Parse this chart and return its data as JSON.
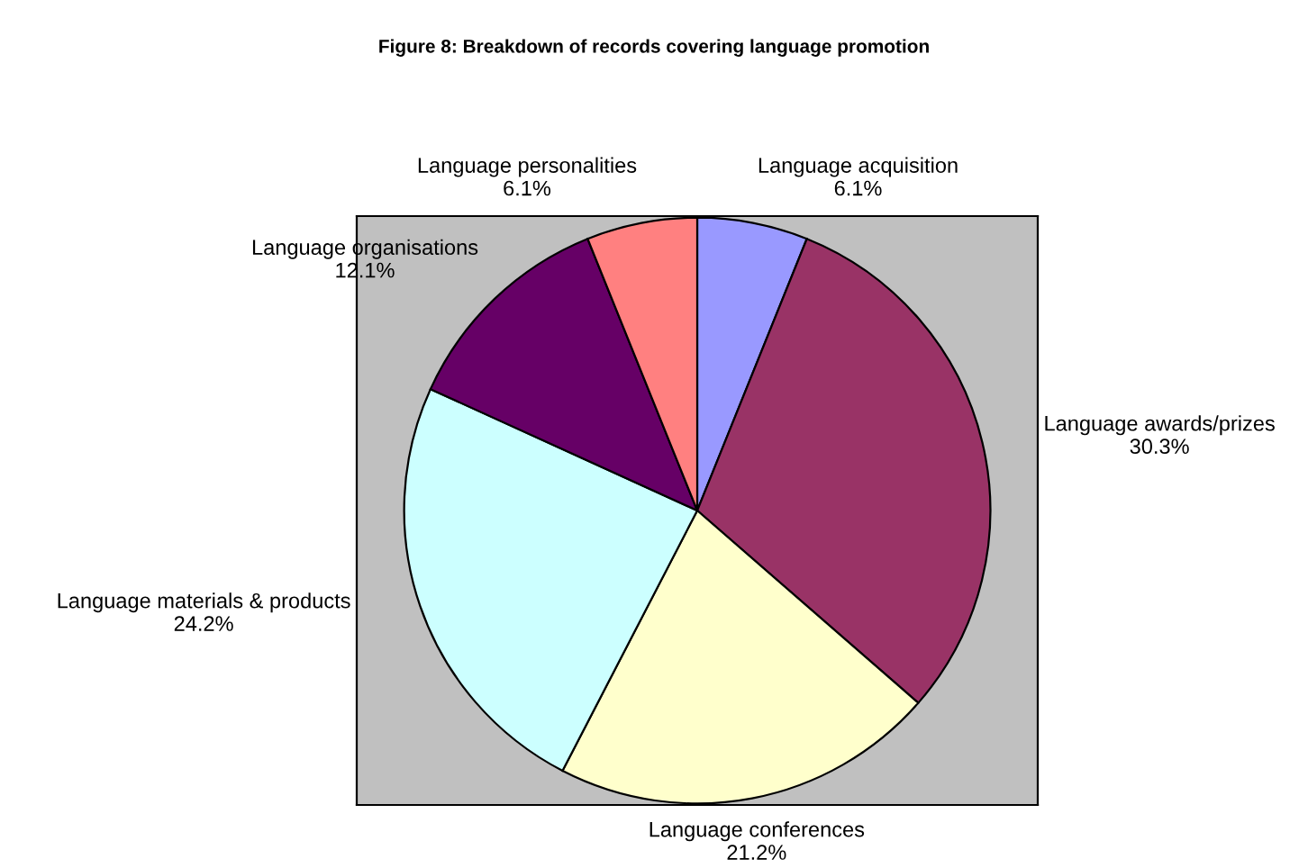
{
  "chart_data": {
    "type": "pie",
    "title": "Figure 8: Breakdown of records covering language promotion",
    "categories": [
      "Language acquisition",
      "Language awards/prizes",
      "Language conferences",
      "Language materials & products",
      "Language organisations",
      "Language personalities"
    ],
    "values": [
      6.1,
      30.3,
      21.2,
      24.2,
      12.1,
      6.1
    ],
    "value_labels": [
      "6.1%",
      "30.3%",
      "21.2%",
      "24.2%",
      "12.1%",
      "6.1%"
    ],
    "colors": [
      "#9999ff",
      "#993366",
      "#ffffcc",
      "#ccffff",
      "#660066",
      "#ff8080"
    ],
    "legend": false
  }
}
